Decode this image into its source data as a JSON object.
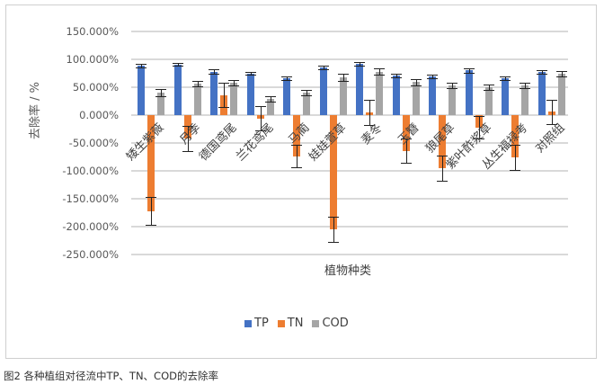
{
  "chart_data": {
    "type": "bar",
    "title": "",
    "xlabel": "植物种类",
    "ylabel": "去除率 / %",
    "ylim": [
      -250,
      150
    ],
    "yticks": [
      "150.000%",
      "100.000%",
      "50.000%",
      "0.000%",
      "-50.000%",
      "-100.000%",
      "-150.000%",
      "-200.000%",
      "-250.000%"
    ],
    "grid": true,
    "legend_position": "bottom",
    "categories": [
      "矮生紫薇",
      "月季",
      "德国鸢尾",
      "兰花鸢尾",
      "马蔺",
      "娃娃萱草",
      "麦冬",
      "玉簪",
      "狼尾草",
      "紫叶酢浆草",
      "丛生福禄考",
      "对照组"
    ],
    "series": [
      {
        "name": "TP",
        "color": "#4472c4",
        "values": [
          89,
          91,
          78,
          75,
          66,
          86,
          92,
          71,
          69,
          80,
          66,
          77
        ],
        "errors": [
          3,
          3,
          4,
          3,
          3,
          3,
          3,
          3,
          3,
          4,
          3,
          3
        ]
      },
      {
        "name": "TN",
        "color": "#ed7d31",
        "values": [
          -172,
          -42,
          36,
          -6,
          -74,
          -205,
          5,
          -64,
          -95,
          -22,
          -76,
          6
        ],
        "errors": [
          25,
          22,
          22,
          22,
          20,
          22,
          22,
          22,
          22,
          20,
          22,
          22
        ]
      },
      {
        "name": "COD",
        "color": "#a5a5a5",
        "values": [
          40,
          57,
          58,
          29,
          40,
          68,
          78,
          59,
          53,
          50,
          53,
          74
        ],
        "errors": [
          6,
          5,
          5,
          5,
          5,
          6,
          6,
          5,
          5,
          5,
          5,
          5
        ]
      }
    ]
  },
  "legend": [
    {
      "label": "TP",
      "color": "#4472c4"
    },
    {
      "label": "TN",
      "color": "#ed7d31"
    },
    {
      "label": "COD",
      "color": "#a5a5a5"
    }
  ],
  "caption": "图2 各种植组对径流中TP、TN、COD的去除率"
}
